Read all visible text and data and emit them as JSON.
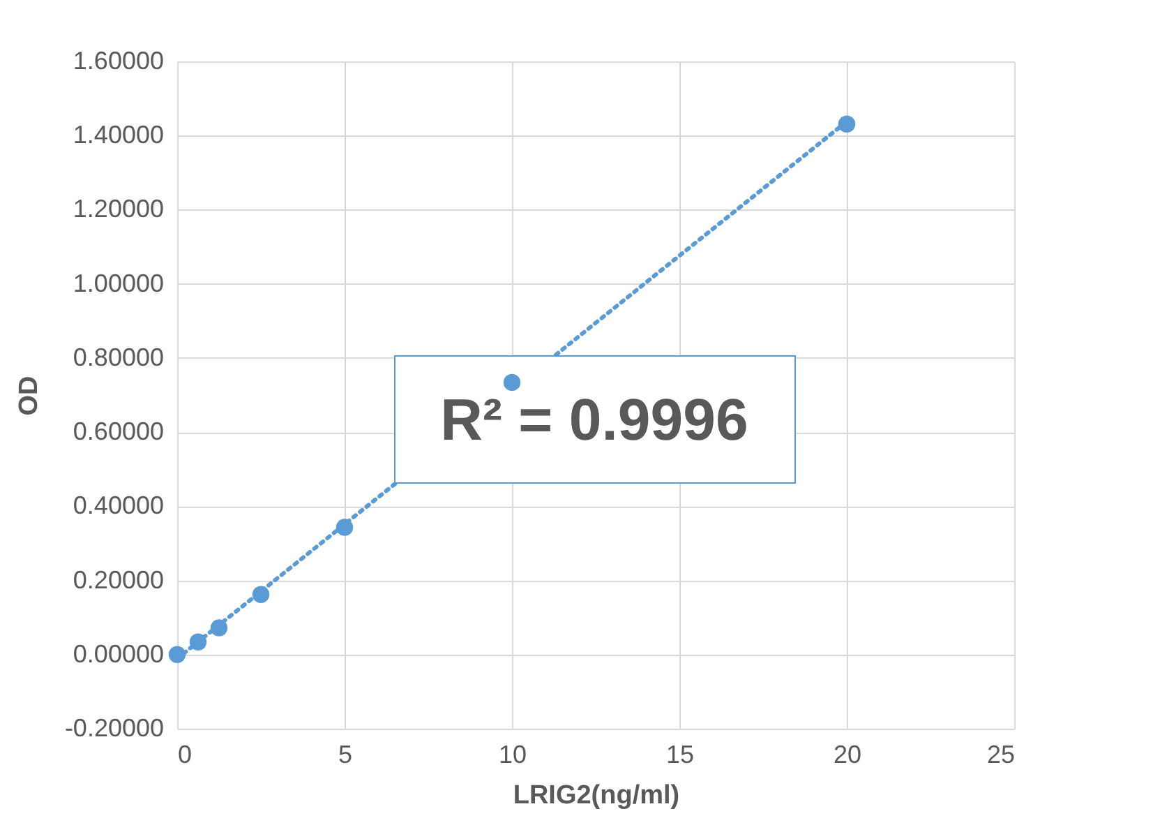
{
  "chart_data": {
    "type": "scatter",
    "xlabel": "LRIG2(ng/ml)",
    "ylabel": "OD",
    "xlim": [
      0,
      25
    ],
    "xticks": [
      0,
      5,
      10,
      15,
      20,
      25
    ],
    "ylim": [
      -0.2,
      1.6
    ],
    "yticks": [
      {
        "value": -0.2,
        "label": "-0.20000"
      },
      {
        "value": 0,
        "label": "0.00000"
      },
      {
        "value": 0.2,
        "label": "0.20000"
      },
      {
        "value": 0.4,
        "label": "0.40000"
      },
      {
        "value": 0.6,
        "label": "0.60000"
      },
      {
        "value": 0.8,
        "label": "0.80000"
      },
      {
        "value": 1.0,
        "label": "1.00000"
      },
      {
        "value": 1.2,
        "label": "1.20000"
      },
      {
        "value": 1.4,
        "label": "1.40000"
      },
      {
        "value": 1.6,
        "label": "1.60000"
      }
    ],
    "grid": true,
    "marker": "circle",
    "series": [
      {
        "color": "#5b9bd5",
        "x": [
          0,
          0.625,
          1.25,
          2.5,
          5,
          10,
          20
        ],
        "values": [
          0,
          0.034,
          0.072,
          0.162,
          0.343,
          0.734,
          1.431
        ]
      },
      {
        "type": "line",
        "line_style": "dotted",
        "marker": "none",
        "color": "#5b9bd5",
        "x": [
          0,
          20
        ],
        "values": [
          -0.011,
          1.438
        ]
      }
    ],
    "annotations": [
      "R² = 0.9996"
    ]
  }
}
